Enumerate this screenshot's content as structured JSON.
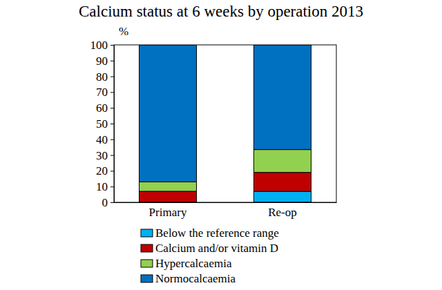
{
  "chart_data": {
    "type": "bar",
    "title": "Calcium status at 6 weeks by operation 2013",
    "y_label": "%",
    "categories": [
      "Primary",
      "Re-op"
    ],
    "series": [
      {
        "name": "Below the reference range",
        "color": "#00b0f0",
        "values": [
          0,
          7
        ]
      },
      {
        "name": "Calcium and/or vitamin D",
        "color": "#c00000",
        "values": [
          7,
          12
        ]
      },
      {
        "name": "Hypercalcaemia",
        "color": "#92d050",
        "values": [
          6,
          14.5
        ]
      },
      {
        "name": "Normocalcaemia",
        "color": "#0070c0",
        "values": [
          87,
          66.5
        ]
      }
    ],
    "ylim": [
      0,
      100
    ],
    "yticks": [
      0,
      10,
      20,
      30,
      40,
      50,
      60,
      70,
      80,
      90,
      100
    ],
    "stacked": true,
    "grid": false,
    "legend": "bottom"
  }
}
